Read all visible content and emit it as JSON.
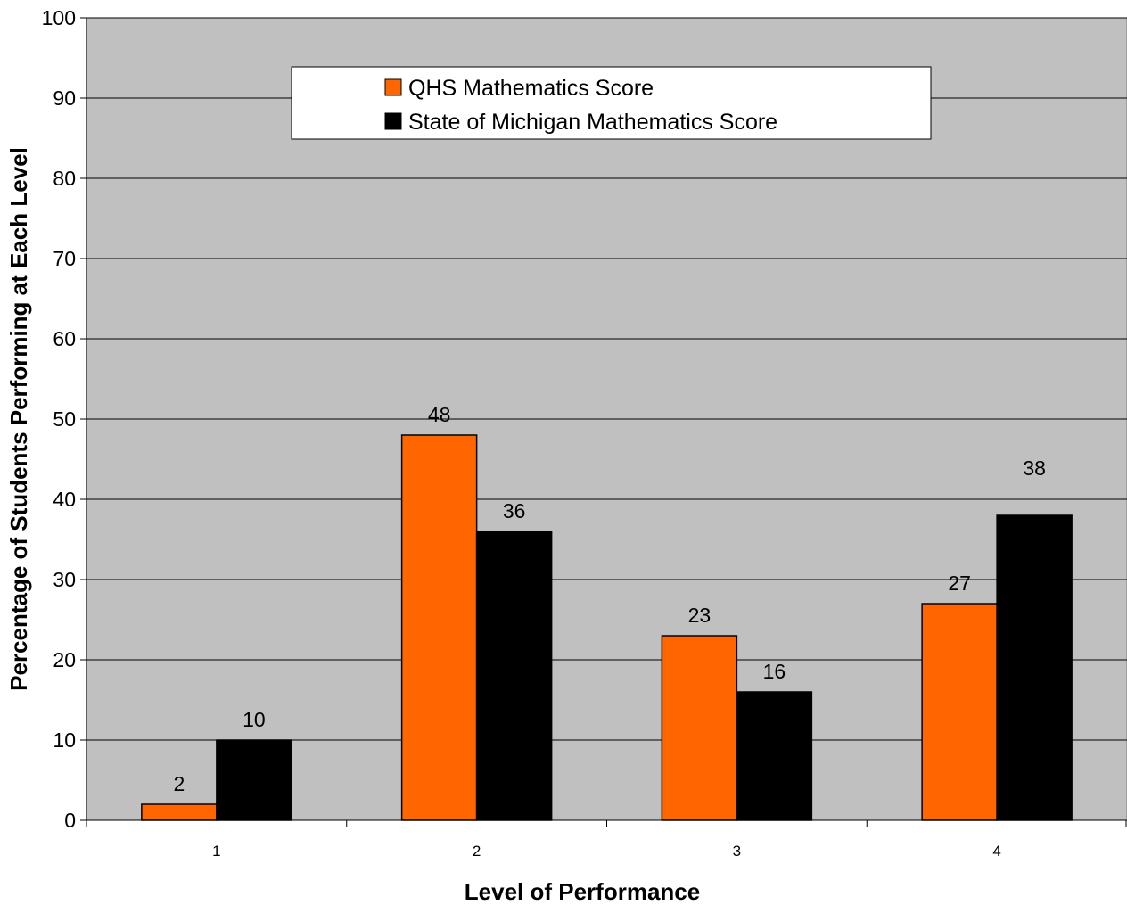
{
  "chart_data": {
    "type": "bar",
    "title": "",
    "xlabel": "Level of Performance",
    "ylabel": "Percentage of Students Performing at Each Level",
    "categories": [
      "1",
      "2",
      "3",
      "4"
    ],
    "series": [
      {
        "name": "QHS Mathematics Score",
        "values": [
          2,
          48,
          23,
          27
        ],
        "color": "#ff6600"
      },
      {
        "name": "State of Michigan Mathematics Score",
        "values": [
          10,
          36,
          16,
          38
        ],
        "color": "#000000"
      }
    ],
    "ylim": [
      0,
      100
    ],
    "yticks": [
      "0",
      "10",
      "20",
      "30",
      "40",
      "50",
      "60",
      "70",
      "80",
      "90",
      "100"
    ],
    "grid": true,
    "plot_background": "#c0c0c0",
    "legend_position": "top-center"
  }
}
